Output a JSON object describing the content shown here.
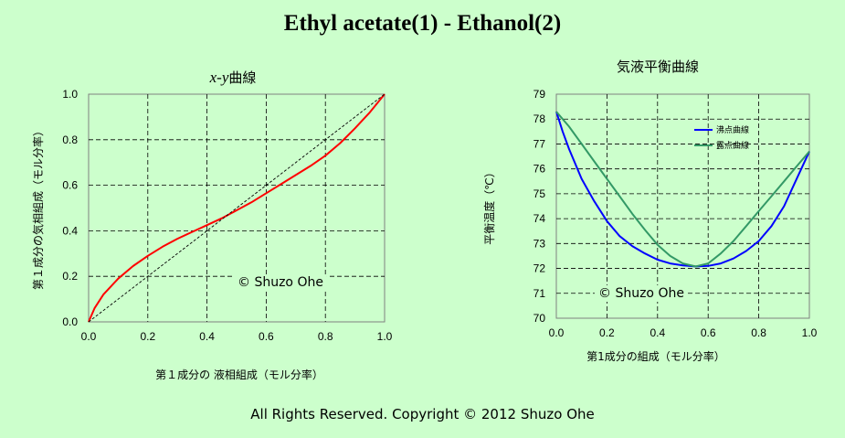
{
  "page_title": "Ethyl acetate(1) - Ethanol(2)",
  "footer": "All Rights Reserved. Copyright © 2012 Shuzo Ohe",
  "chart_data": [
    {
      "type": "line",
      "title_italic": "x-y",
      "title_suffix": "曲線",
      "xlabel": "第１成分の 液相組成（モル分率）",
      "ylabel": "第１成分の気相組成（モル分率）",
      "xlim": [
        0,
        1
      ],
      "ylim": [
        0,
        1
      ],
      "xticks": [
        "0.0",
        "0.2",
        "0.4",
        "0.6",
        "0.8",
        "1.0"
      ],
      "yticks": [
        "0.0",
        "0.2",
        "0.4",
        "0.6",
        "0.8",
        "1.0"
      ],
      "grid": true,
      "watermark": "© Shuzo Ohe",
      "series": [
        {
          "color": "#ff0000",
          "x": [
            0,
            0.02,
            0.05,
            0.1,
            0.15,
            0.2,
            0.25,
            0.3,
            0.35,
            0.4,
            0.45,
            0.5,
            0.55,
            0.6,
            0.65,
            0.7,
            0.75,
            0.8,
            0.85,
            0.9,
            0.95,
            1.0
          ],
          "y": [
            0,
            0.06,
            0.12,
            0.19,
            0.245,
            0.29,
            0.33,
            0.365,
            0.395,
            0.425,
            0.455,
            0.49,
            0.525,
            0.565,
            0.605,
            0.645,
            0.685,
            0.73,
            0.785,
            0.85,
            0.92,
            1.0
          ]
        },
        {
          "color": "#000000",
          "dashed": true,
          "x": [
            0,
            1
          ],
          "y": [
            0,
            1
          ]
        }
      ]
    },
    {
      "type": "line",
      "title": "気液平衡曲線",
      "xlabel": "第1成分の組成（モル分率）",
      "ylabel": "平衡温度（℃）",
      "xlim": [
        0,
        1
      ],
      "ylim": [
        70,
        79
      ],
      "xticks": [
        "0.0",
        "0.2",
        "0.4",
        "0.6",
        "0.8",
        "1.0"
      ],
      "yticks": [
        "70",
        "71",
        "72",
        "73",
        "74",
        "75",
        "76",
        "77",
        "78",
        "79"
      ],
      "grid": true,
      "legend": "top-right",
      "watermark": "© Shuzo Ohe",
      "series": [
        {
          "name": "沸点曲線",
          "color": "#0000ff",
          "x": [
            0,
            0.025,
            0.05,
            0.1,
            0.15,
            0.2,
            0.25,
            0.3,
            0.35,
            0.4,
            0.45,
            0.5,
            0.55,
            0.6,
            0.65,
            0.7,
            0.75,
            0.8,
            0.85,
            0.9,
            0.95,
            1.0
          ],
          "y": [
            78.3,
            77.5,
            76.8,
            75.6,
            74.7,
            73.9,
            73.3,
            72.9,
            72.6,
            72.35,
            72.2,
            72.12,
            72.08,
            72.1,
            72.2,
            72.4,
            72.7,
            73.1,
            73.7,
            74.5,
            75.6,
            76.7
          ]
        },
        {
          "name": "露点曲線",
          "color": "#339966",
          "x": [
            0,
            0.05,
            0.1,
            0.15,
            0.2,
            0.25,
            0.3,
            0.35,
            0.4,
            0.45,
            0.5,
            0.55,
            0.6,
            0.65,
            0.7,
            0.75,
            0.8,
            0.85,
            0.9,
            0.95,
            1.0
          ],
          "y": [
            78.3,
            77.7,
            77.0,
            76.3,
            75.6,
            74.9,
            74.2,
            73.55,
            72.95,
            72.5,
            72.2,
            72.08,
            72.2,
            72.6,
            73.1,
            73.7,
            74.3,
            74.9,
            75.5,
            76.1,
            76.7
          ]
        }
      ]
    }
  ]
}
